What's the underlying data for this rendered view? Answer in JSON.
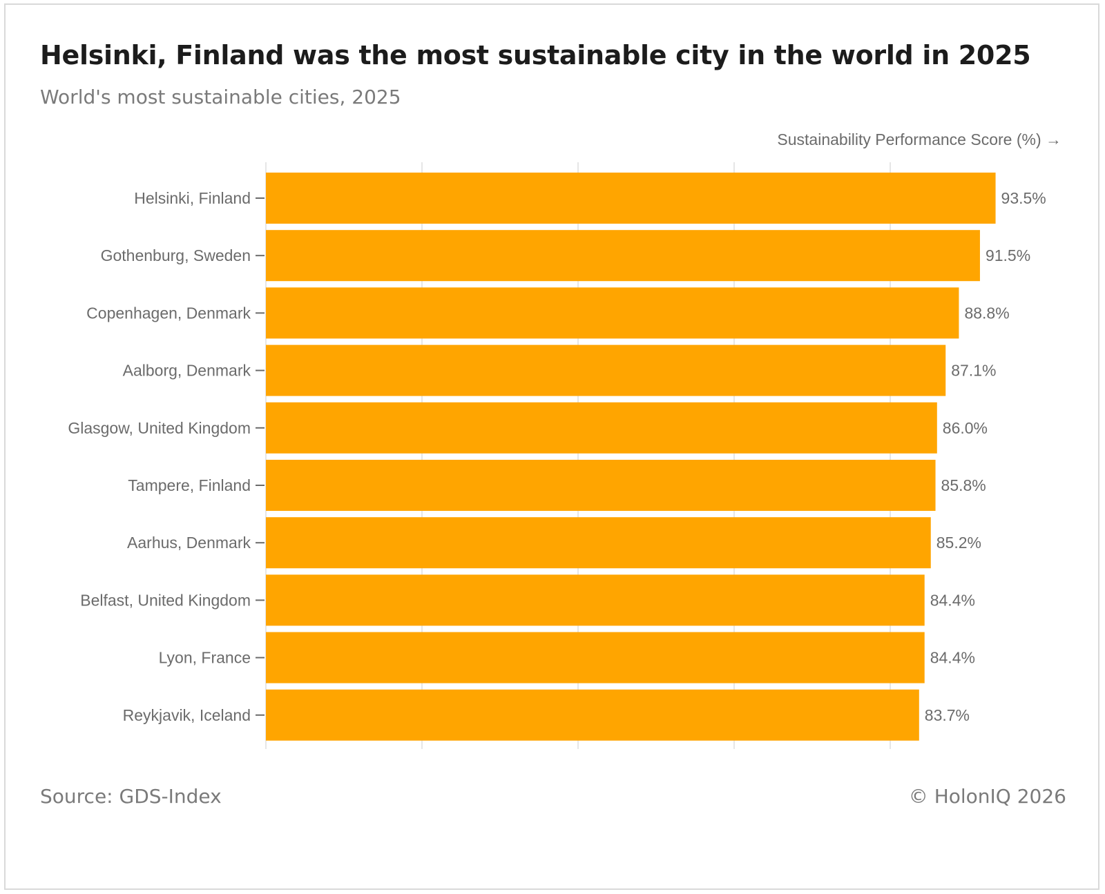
{
  "title": "Helsinki, Finland was the most sustainable city in the world in 2025",
  "subtitle": "World's most sustainable cities, 2025",
  "source": "Source: GDS-Index",
  "credit": "© HolonIQ 2026",
  "colors": {
    "bar": "#FFA500",
    "grid": "#e6e6e6",
    "text": "#6b6b6b",
    "title": "#1c1c1c"
  },
  "chart_data": {
    "type": "bar",
    "orientation": "horizontal",
    "xlabel": "Sustainability Performance Score (%) →",
    "ylabel": "",
    "xlim": [
      0,
      100
    ],
    "grid": true,
    "categories": [
      "Helsinki, Finland",
      "Gothenburg, Sweden",
      "Copenhagen, Denmark",
      "Aalborg, Denmark",
      "Glasgow, United Kingdom",
      "Tampere, Finland",
      "Aarhus, Denmark",
      "Belfast, United Kingdom",
      "Lyon, France",
      "Reykjavik, Iceland"
    ],
    "values": [
      93.5,
      91.5,
      88.8,
      87.1,
      86.0,
      85.8,
      85.2,
      84.4,
      84.4,
      83.7
    ],
    "value_labels": [
      "93.5%",
      "91.5%",
      "88.8%",
      "87.1%",
      "86.0%",
      "85.8%",
      "85.2%",
      "84.4%",
      "84.4%",
      "83.7%"
    ]
  }
}
